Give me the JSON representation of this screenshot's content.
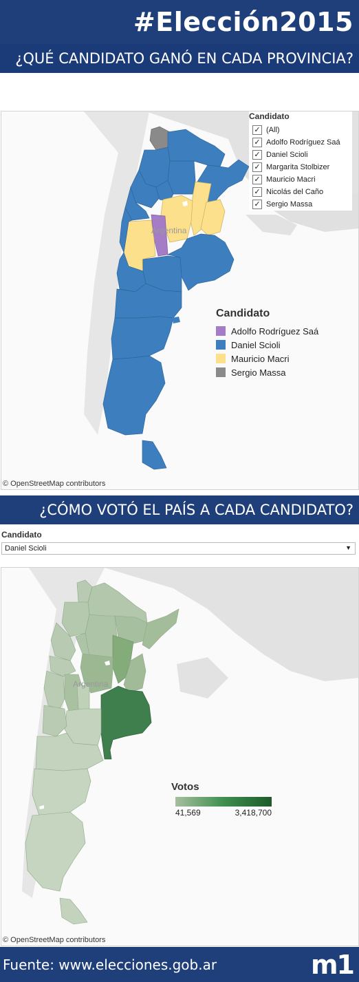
{
  "header": {
    "title": "#Elección2015",
    "subtitle1": "¿QUÉ CANDIDATO GANÓ EN CADA PROVINCIA?",
    "subtitle2": "¿CÓMO VOTÓ EL PAÍS A CADA CANDIDATO?"
  },
  "map1": {
    "attribution": "© OpenStreetMap contributors",
    "country_label": "Argentina",
    "filter": {
      "title": "Candidato",
      "items": [
        {
          "label": "(All)",
          "checked": true
        },
        {
          "label": "Adolfo Rodríguez Saá",
          "checked": true
        },
        {
          "label": "Daniel Scioli",
          "checked": true
        },
        {
          "label": "Margarita Stolbizer",
          "checked": true
        },
        {
          "label": "Mauricio Macri",
          "checked": true
        },
        {
          "label": "Nicolás del Caño",
          "checked": true
        },
        {
          "label": "Sergio Massa",
          "checked": true
        }
      ],
      "check_glyph": "✓"
    },
    "legend": {
      "title": "Candidato",
      "items": [
        {
          "label": "Adolfo Rodríguez Saá",
          "color": "#a57cc6"
        },
        {
          "label": "Daniel Scioli",
          "color": "#3d7fbe"
        },
        {
          "label": "Mauricio Macri",
          "color": "#fde08c"
        },
        {
          "label": "Sergio Massa",
          "color": "#8a8a8a"
        }
      ]
    }
  },
  "map2": {
    "candidate_label": "Candidato",
    "selected": "Daniel Scioli",
    "dropdown_icon": "▼",
    "attribution": "© OpenStreetMap contributors",
    "country_label": "Argentina",
    "legend": {
      "title": "Votos",
      "min": "41,569",
      "max": "3,418,700",
      "min_value": 41569,
      "max_value": 3418700,
      "color_low": "#a6bf9e",
      "color_high": "#1d5a2b"
    }
  },
  "footer": {
    "source": "Fuente: www.elecciones.gob.ar",
    "logo": "m1"
  },
  "colors": {
    "header_bg": "#1f3f7a",
    "land": "#e2e2e2",
    "sea": "#fafafa"
  }
}
